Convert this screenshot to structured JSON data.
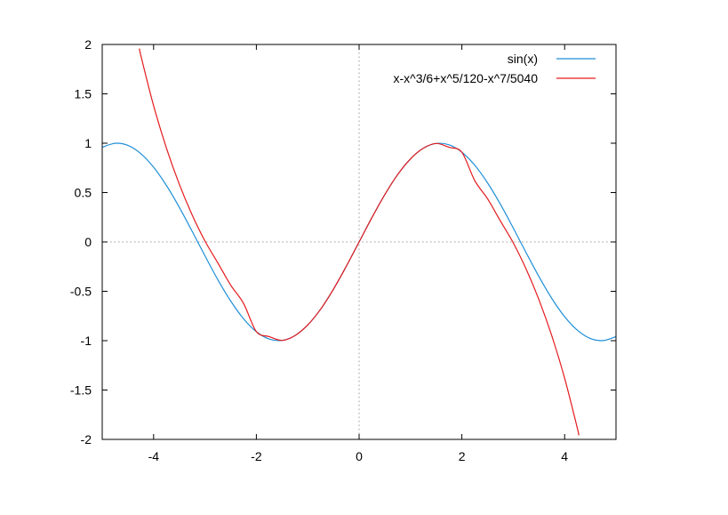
{
  "chart_data": {
    "type": "line",
    "xlim": [
      -5,
      5
    ],
    "ylim": [
      -2,
      2
    ],
    "x_ticks": [
      -4,
      -2,
      0,
      2,
      4
    ],
    "y_ticks": [
      -2,
      -1.5,
      -1,
      -0.5,
      0,
      0.5,
      1,
      1.5,
      2
    ],
    "x_tick_labels": [
      "-4",
      "-2",
      "0",
      "2",
      "4"
    ],
    "y_tick_labels": [
      "-2",
      "-1.5",
      "-1",
      "-0.5",
      "0",
      "0.5",
      "1",
      "1.5",
      "2"
    ],
    "zero_axes": "dotted",
    "grid": false,
    "legend": "top-right",
    "series": [
      {
        "name": "sin(x)",
        "color": "#1f8fd8",
        "x": [
          -5,
          -4.75,
          -4.5,
          -4.25,
          -4,
          -3.75,
          -3.5,
          -3.25,
          -3,
          -2.75,
          -2.5,
          -2.25,
          -2,
          -1.75,
          -1.5,
          -1.25,
          -1,
          -0.75,
          -0.5,
          -0.25,
          0,
          0.25,
          0.5,
          0.75,
          1,
          1.25,
          1.5,
          1.75,
          2,
          2.25,
          2.5,
          2.75,
          3,
          3.25,
          3.5,
          3.75,
          4,
          4.25,
          4.5,
          4.75,
          5
        ],
        "y": [
          0.959,
          0.999,
          0.978,
          0.895,
          0.757,
          0.572,
          0.351,
          0.108,
          -0.141,
          -0.382,
          -0.598,
          -0.778,
          -0.909,
          -0.984,
          -0.997,
          -0.949,
          -0.841,
          -0.682,
          -0.479,
          -0.247,
          0,
          0.247,
          0.479,
          0.682,
          0.841,
          0.949,
          0.997,
          0.984,
          0.909,
          0.778,
          0.598,
          0.382,
          0.141,
          -0.108,
          -0.351,
          -0.572,
          -0.757,
          -0.895,
          -0.978,
          -0.999,
          -0.959
        ]
      },
      {
        "name": "x-x^3/6+x^5/120-x^7/5040",
        "color": "#e41a1c",
        "x": [
          -4.27,
          -4.25,
          -4,
          -3.75,
          -3.5,
          -3.25,
          -3,
          -2.75,
          -2.5,
          -2.25,
          -2,
          -1.75,
          -1.5,
          -1.25,
          -1,
          -0.75,
          -0.5,
          -0.25,
          0,
          0.25,
          0.5,
          0.75,
          1,
          1.25,
          1.5,
          1.75,
          2,
          2.25,
          2.5,
          2.75,
          3,
          3.25,
          3.5,
          3.75,
          4,
          4.25,
          4.27
        ],
        "y": [
          1.955,
          1.892,
          1.38,
          0.95,
          0.585,
          0.274,
          0.009,
          -0.212,
          -0.437,
          -0.622,
          -0.908,
          -0.959,
          -0.997,
          -0.949,
          -0.841,
          -0.682,
          -0.479,
          -0.247,
          0,
          0.247,
          0.479,
          0.682,
          0.841,
          0.949,
          0.997,
          0.959,
          0.908,
          0.622,
          0.437,
          0.212,
          -0.009,
          -0.274,
          -0.585,
          -0.95,
          -1.38,
          -1.892,
          -1.955
        ]
      }
    ]
  }
}
